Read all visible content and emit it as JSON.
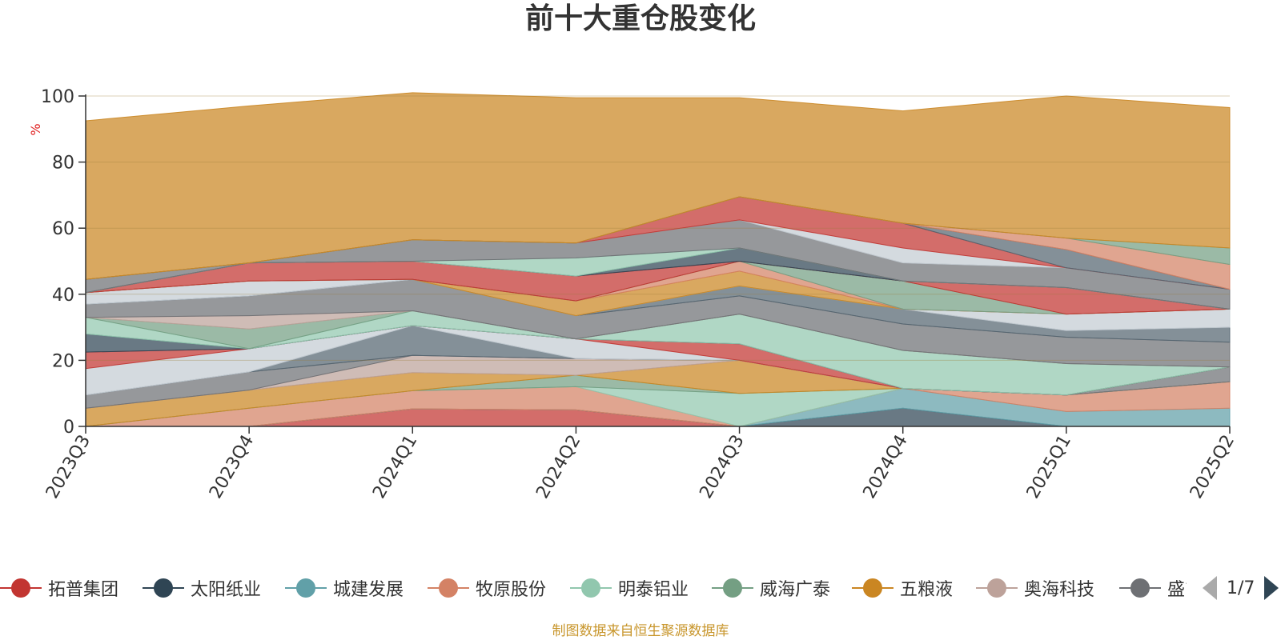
{
  "title": "前十大重仓股变化",
  "source_note": "制图数据来自恒生聚源数据库",
  "legend": {
    "items": [
      {
        "label": "拓普集团",
        "color": "#c23531"
      },
      {
        "label": "太阳纸业",
        "color": "#2f4554"
      },
      {
        "label": "城建发展",
        "color": "#61a0a8"
      },
      {
        "label": "牧原股份",
        "color": "#d48265"
      },
      {
        "label": "明泰铝业",
        "color": "#91c7ae"
      },
      {
        "label": "威海广泰",
        "color": "#749f83"
      },
      {
        "label": "五粮液",
        "color": "#ca8622"
      },
      {
        "label": "奥海科技",
        "color": "#bda29a"
      },
      {
        "label": "盛屯",
        "color": "#6e7074"
      }
    ],
    "page_indicator": "1/7"
  },
  "chart_data": {
    "type": "area",
    "stacked": true,
    "title": "前十大重仓股变化",
    "xlabel": "",
    "ylabel": "%",
    "ylim": [
      0,
      100
    ],
    "yticks": [
      0,
      20,
      40,
      60,
      80,
      100
    ],
    "grid": true,
    "legend_position": "bottom",
    "categories": [
      "2023Q3",
      "2023Q4",
      "2024Q1",
      "2024Q2",
      "2024Q3",
      "2024Q4",
      "2025Q1",
      "2025Q2"
    ],
    "bands": [
      {
        "color": "#c23531",
        "values": [
          0,
          0,
          5.3,
          5.0,
          0,
          0,
          0,
          0
        ]
      },
      {
        "color": "#2f4554",
        "values": [
          0,
          0,
          0,
          0,
          0,
          5.5,
          0,
          0
        ]
      },
      {
        "color": "#61a0a8",
        "values": [
          0,
          0,
          0,
          0,
          0,
          6.0,
          4.5,
          5.5
        ]
      },
      {
        "color": "#d48265",
        "values": [
          0,
          5.5,
          5.5,
          7.0,
          0,
          0,
          5.0,
          8.0
        ]
      },
      {
        "color": "#91c7ae",
        "values": [
          0,
          0,
          0,
          0,
          10.0,
          0,
          0,
          0
        ]
      },
      {
        "color": "#749f83",
        "values": [
          0,
          0,
          0,
          3.5,
          0,
          0,
          0,
          0
        ]
      },
      {
        "color": "#ca8622",
        "values": [
          5.5,
          5.5,
          5.5,
          0,
          10.0,
          0,
          0,
          0
        ]
      },
      {
        "color": "#bda29a",
        "values": [
          0,
          0,
          5.2,
          5.0,
          0,
          0,
          0,
          0
        ]
      },
      {
        "color": "#6e7074",
        "values": [
          4.0,
          5.5,
          0,
          0,
          0,
          0,
          0,
          4.5
        ]
      },
      {
        "color": "#546570",
        "values": [
          0,
          0,
          9.0,
          0,
          0,
          0,
          0,
          0
        ]
      },
      {
        "color": "#c4ccd3",
        "values": [
          8.0,
          7.0,
          0,
          6.0,
          0,
          0,
          0,
          0
        ]
      },
      {
        "color": "#c23531",
        "values": [
          5.0,
          0,
          0,
          0,
          5.0,
          0,
          0,
          0
        ]
      },
      {
        "color": "#2f4554",
        "values": [
          5.5,
          0,
          0,
          0,
          0,
          0,
          0,
          0
        ]
      },
      {
        "color": "#91c7ae",
        "values": [
          5.0,
          0,
          4.5,
          0,
          9.0,
          11.5,
          9.5,
          0
        ]
      },
      {
        "color": "#749f83",
        "values": [
          0,
          6.0,
          0,
          0,
          0,
          0,
          0,
          0
        ]
      },
      {
        "color": "#bda29a",
        "values": [
          0,
          4.0,
          0,
          0,
          0,
          0,
          0,
          0
        ]
      },
      {
        "color": "#6e7074",
        "values": [
          4.0,
          6.0,
          9.5,
          7.0,
          5.5,
          8.0,
          8.0,
          7.5
        ]
      },
      {
        "color": "#546570",
        "values": [
          0,
          0,
          0,
          0,
          3.0,
          4.5,
          2.0,
          4.5
        ]
      },
      {
        "color": "#c4ccd3",
        "values": [
          3.5,
          4.5,
          0,
          0,
          0,
          0,
          5.0,
          5.5
        ]
      },
      {
        "color": "#ca8622",
        "values": [
          0,
          0,
          0,
          4.5,
          4.5,
          0,
          0,
          0
        ]
      },
      {
        "color": "#d48265",
        "values": [
          0,
          0,
          0,
          0,
          3.0,
          0,
          0,
          0
        ]
      },
      {
        "color": "#749f83",
        "values": [
          0,
          0,
          0,
          0,
          0,
          8.5,
          0,
          0
        ]
      },
      {
        "color": "#c23531",
        "values": [
          0,
          5.5,
          5.5,
          7.5,
          0,
          0,
          8.0,
          0
        ]
      },
      {
        "color": "#2f4554",
        "values": [
          0,
          0,
          0,
          0,
          4.0,
          0,
          0,
          0
        ]
      },
      {
        "color": "#91c7ae",
        "values": [
          0,
          0,
          0,
          5.5,
          0,
          0,
          0,
          0
        ]
      },
      {
        "color": "#6e7074",
        "values": [
          4.0,
          0,
          6.5,
          4.5,
          8.5,
          5.5,
          6.0,
          6.0
        ]
      },
      {
        "color": "#c4ccd3",
        "values": [
          0,
          0,
          0,
          0,
          0,
          4.5,
          0,
          0
        ]
      },
      {
        "color": "#c23531",
        "values": [
          0,
          0,
          0,
          0,
          7.0,
          7.5,
          0,
          0
        ]
      },
      {
        "color": "#546570",
        "values": [
          0,
          0,
          0,
          0,
          0,
          0,
          5.5,
          0
        ]
      },
      {
        "color": "#d48265",
        "values": [
          0,
          0,
          0,
          0,
          0,
          0,
          3.5,
          7.5
        ]
      },
      {
        "color": "#749f83",
        "values": [
          0,
          0,
          0,
          0,
          0,
          0,
          0,
          5.0
        ]
      },
      {
        "color": "#ca8622",
        "values": [
          48.0,
          47.5,
          44.5,
          44.0,
          30.0,
          34.0,
          43.0,
          42.5
        ]
      }
    ]
  }
}
